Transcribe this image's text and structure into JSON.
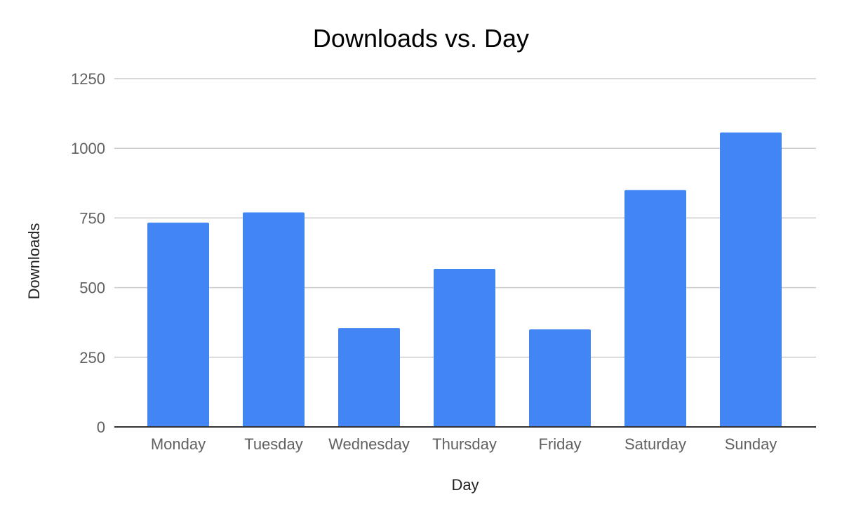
{
  "chart_data": {
    "type": "bar",
    "title": "Downloads vs. Day",
    "xlabel": "Day",
    "ylabel": "Downloads",
    "categories": [
      "Monday",
      "Tuesday",
      "Wednesday",
      "Thursday",
      "Friday",
      "Saturday",
      "Sunday"
    ],
    "series": [
      {
        "values": [
          733,
          770,
          355,
          567,
          350,
          850,
          1057
        ],
        "color": "#4285f4"
      }
    ],
    "ylim": [
      0,
      1250
    ],
    "yticks": [
      0,
      250,
      500,
      750,
      1000,
      1250
    ],
    "ytick_labels": [
      "0",
      "250",
      "500",
      "750",
      "1000",
      "1250"
    ],
    "grid": true,
    "legend": "none"
  }
}
